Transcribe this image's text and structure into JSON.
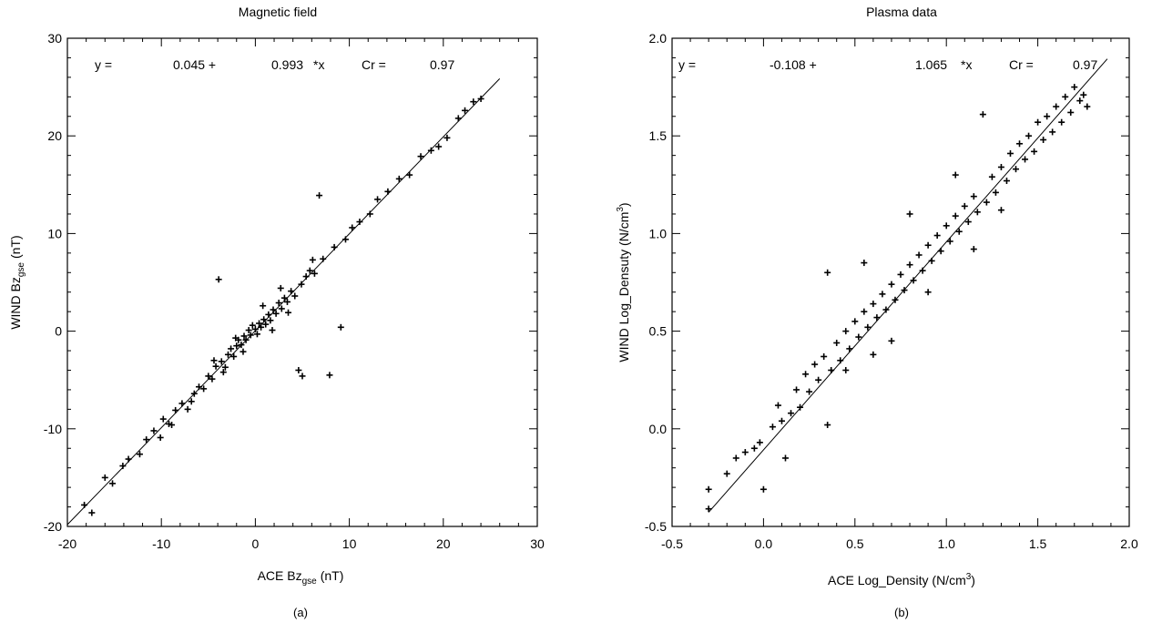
{
  "chart_data": [
    {
      "type": "scatter",
      "title": "Magnetic field",
      "xlabel": {
        "main": "ACE Bz",
        "sub": "gse",
        "unit": "(nT)"
      },
      "ylabel": {
        "main": "WIND Bz",
        "sub": "gse",
        "unit": "(nT)"
      },
      "xlim": [
        -20,
        30
      ],
      "ylim": [
        -20,
        30
      ],
      "xticks": [
        "-20",
        "-10",
        "0",
        "10",
        "20",
        "30"
      ],
      "yticks": [
        "-20",
        "-10",
        "0",
        "10",
        "20",
        "30"
      ],
      "equation": {
        "y_label": "y =",
        "intercept": "0.045 +",
        "slope": "0.993",
        "times_x": "*x",
        "cr_label": "Cr =",
        "cr": "0.97"
      },
      "fit": {
        "intercept": 0.045,
        "slope": 0.993,
        "x_range": [
          -20,
          26
        ]
      },
      "panel_label": "(a)",
      "grid": false,
      "points": [
        [
          -18.2,
          -17.8
        ],
        [
          -17.4,
          -18.6
        ],
        [
          -16.0,
          -15.0
        ],
        [
          -15.2,
          -15.6
        ],
        [
          -14.1,
          -13.8
        ],
        [
          -13.5,
          -13.1
        ],
        [
          -12.3,
          -12.6
        ],
        [
          -11.6,
          -11.1
        ],
        [
          -10.8,
          -10.2
        ],
        [
          -10.1,
          -10.9
        ],
        [
          -9.2,
          -9.5
        ],
        [
          -8.5,
          -8.1
        ],
        [
          -7.8,
          -7.4
        ],
        [
          -7.2,
          -8.0
        ],
        [
          -6.5,
          -6.4
        ],
        [
          -6.0,
          -5.7
        ],
        [
          -5.5,
          -5.9
        ],
        [
          -5.0,
          -4.6
        ],
        [
          -4.6,
          -4.9
        ],
        [
          -4.2,
          -3.6
        ],
        [
          -3.9,
          5.3
        ],
        [
          -3.6,
          -3.1
        ],
        [
          -3.2,
          -3.7
        ],
        [
          -2.9,
          -2.4
        ],
        [
          -2.6,
          -1.8
        ],
        [
          -2.3,
          -2.6
        ],
        [
          -2.0,
          -1.5
        ],
        [
          -1.8,
          -0.9
        ],
        [
          -1.5,
          -1.4
        ],
        [
          -1.2,
          -0.5
        ],
        [
          -1.0,
          -0.9
        ],
        [
          -0.7,
          0.1
        ],
        [
          -0.5,
          -0.4
        ],
        [
          -0.3,
          0.6
        ],
        [
          0.0,
          0.2
        ],
        [
          0.2,
          -0.3
        ],
        [
          0.4,
          0.8
        ],
        [
          0.6,
          0.4
        ],
        [
          0.9,
          1.2
        ],
        [
          1.1,
          0.7
        ],
        [
          1.4,
          1.7
        ],
        [
          1.6,
          1.1
        ],
        [
          1.9,
          2.2
        ],
        [
          2.2,
          1.8
        ],
        [
          2.5,
          2.9
        ],
        [
          2.8,
          2.3
        ],
        [
          3.1,
          3.4
        ],
        [
          3.4,
          3.0
        ],
        [
          3.8,
          4.1
        ],
        [
          4.2,
          3.6
        ],
        [
          4.6,
          -4.0
        ],
        [
          5.0,
          -4.6
        ],
        [
          5.4,
          5.6
        ],
        [
          5.8,
          6.2
        ],
        [
          6.3,
          5.9
        ],
        [
          6.8,
          13.9
        ],
        [
          7.2,
          7.4
        ],
        [
          7.9,
          -4.5
        ],
        [
          8.4,
          8.6
        ],
        [
          9.1,
          0.4
        ],
        [
          9.6,
          9.4
        ],
        [
          10.3,
          10.6
        ],
        [
          11.1,
          11.2
        ],
        [
          12.2,
          12.0
        ],
        [
          13.0,
          13.5
        ],
        [
          14.1,
          14.3
        ],
        [
          15.3,
          15.6
        ],
        [
          16.4,
          16.0
        ],
        [
          17.6,
          17.9
        ],
        [
          18.7,
          18.5
        ],
        [
          19.5,
          18.9
        ],
        [
          20.4,
          19.8
        ],
        [
          21.6,
          21.8
        ],
        [
          22.3,
          22.6
        ],
        [
          23.2,
          23.5
        ],
        [
          24.0,
          23.8
        ],
        [
          -9.8,
          -9.0
        ],
        [
          -8.9,
          -9.6
        ],
        [
          -6.8,
          -7.2
        ],
        [
          -4.4,
          -3.0
        ],
        [
          -3.4,
          -4.2
        ],
        [
          -2.1,
          -0.7
        ],
        [
          -1.3,
          -2.1
        ],
        [
          0.8,
          2.6
        ],
        [
          1.8,
          0.1
        ],
        [
          2.7,
          4.4
        ],
        [
          3.5,
          1.9
        ],
        [
          4.9,
          4.8
        ],
        [
          6.1,
          7.3
        ]
      ]
    },
    {
      "type": "scatter",
      "title": "Plasma data",
      "xlabel": {
        "main": "ACE Log_Density (N/cm",
        "sup": "3",
        "end": ")"
      },
      "ylabel": {
        "main": "WIND Log_Densuty (N/cm",
        "sup": "3",
        "end": ")"
      },
      "xlim": [
        -0.5,
        2.0
      ],
      "ylim": [
        -0.5,
        2.0
      ],
      "xticks": [
        "-0.5",
        "0.0",
        "0.5",
        "1.0",
        "1.5",
        "2.0"
      ],
      "yticks": [
        "-0.5",
        "0.0",
        "0.5",
        "1.0",
        "1.5",
        "2.0"
      ],
      "equation": {
        "y_label": "y =",
        "intercept": "-0.108 +",
        "slope": "1.065",
        "times_x": "*x",
        "cr_label": "Cr =",
        "cr": "0.97"
      },
      "fit": {
        "intercept": -0.108,
        "slope": 1.065,
        "x_range": [
          -0.3,
          1.88
        ]
      },
      "panel_label": "(b)",
      "grid": false,
      "points": [
        [
          -0.3,
          -0.41
        ],
        [
          -0.3,
          -0.31
        ],
        [
          -0.2,
          -0.23
        ],
        [
          -0.15,
          -0.15
        ],
        [
          -0.1,
          -0.12
        ],
        [
          -0.05,
          -0.1
        ],
        [
          0.0,
          -0.31
        ],
        [
          -0.02,
          -0.07
        ],
        [
          0.05,
          0.01
        ],
        [
          0.08,
          0.12
        ],
        [
          0.1,
          0.04
        ],
        [
          0.12,
          -0.15
        ],
        [
          0.15,
          0.08
        ],
        [
          0.18,
          0.2
        ],
        [
          0.2,
          0.11
        ],
        [
          0.23,
          0.28
        ],
        [
          0.25,
          0.19
        ],
        [
          0.28,
          0.33
        ],
        [
          0.3,
          0.25
        ],
        [
          0.33,
          0.37
        ],
        [
          0.35,
          0.8
        ],
        [
          0.37,
          0.3
        ],
        [
          0.4,
          0.44
        ],
        [
          0.42,
          0.35
        ],
        [
          0.45,
          0.5
        ],
        [
          0.47,
          0.41
        ],
        [
          0.5,
          0.55
        ],
        [
          0.52,
          0.47
        ],
        [
          0.55,
          0.6
        ],
        [
          0.57,
          0.52
        ],
        [
          0.6,
          0.64
        ],
        [
          0.62,
          0.57
        ],
        [
          0.65,
          0.69
        ],
        [
          0.67,
          0.61
        ],
        [
          0.7,
          0.74
        ],
        [
          0.72,
          0.66
        ],
        [
          0.75,
          0.79
        ],
        [
          0.77,
          0.71
        ],
        [
          0.8,
          0.84
        ],
        [
          0.82,
          0.76
        ],
        [
          0.85,
          0.89
        ],
        [
          0.87,
          0.81
        ],
        [
          0.9,
          0.94
        ],
        [
          0.92,
          0.86
        ],
        [
          0.95,
          0.99
        ],
        [
          0.97,
          0.91
        ],
        [
          1.0,
          1.04
        ],
        [
          1.02,
          0.96
        ],
        [
          1.05,
          1.09
        ],
        [
          1.07,
          1.01
        ],
        [
          1.1,
          1.14
        ],
        [
          1.12,
          1.06
        ],
        [
          1.15,
          1.19
        ],
        [
          1.17,
          1.11
        ],
        [
          1.2,
          1.61
        ],
        [
          1.22,
          1.16
        ],
        [
          1.25,
          1.29
        ],
        [
          1.27,
          1.21
        ],
        [
          1.3,
          1.34
        ],
        [
          1.33,
          1.27
        ],
        [
          1.35,
          1.41
        ],
        [
          1.38,
          1.33
        ],
        [
          1.4,
          1.46
        ],
        [
          1.43,
          1.38
        ],
        [
          1.45,
          1.5
        ],
        [
          1.48,
          1.42
        ],
        [
          1.5,
          1.57
        ],
        [
          1.53,
          1.48
        ],
        [
          1.55,
          1.6
        ],
        [
          1.58,
          1.52
        ],
        [
          1.6,
          1.65
        ],
        [
          1.63,
          1.57
        ],
        [
          1.65,
          1.7
        ],
        [
          1.68,
          1.62
        ],
        [
          1.7,
          1.75
        ],
        [
          1.73,
          1.68
        ],
        [
          1.75,
          1.71
        ],
        [
          1.77,
          1.65
        ],
        [
          0.35,
          0.02
        ],
        [
          0.45,
          0.3
        ],
        [
          0.6,
          0.38
        ],
        [
          0.55,
          0.85
        ],
        [
          0.7,
          0.45
        ],
        [
          0.8,
          1.1
        ],
        [
          0.9,
          0.7
        ],
        [
          1.05,
          1.3
        ],
        [
          1.15,
          0.92
        ],
        [
          1.3,
          1.12
        ]
      ]
    }
  ]
}
